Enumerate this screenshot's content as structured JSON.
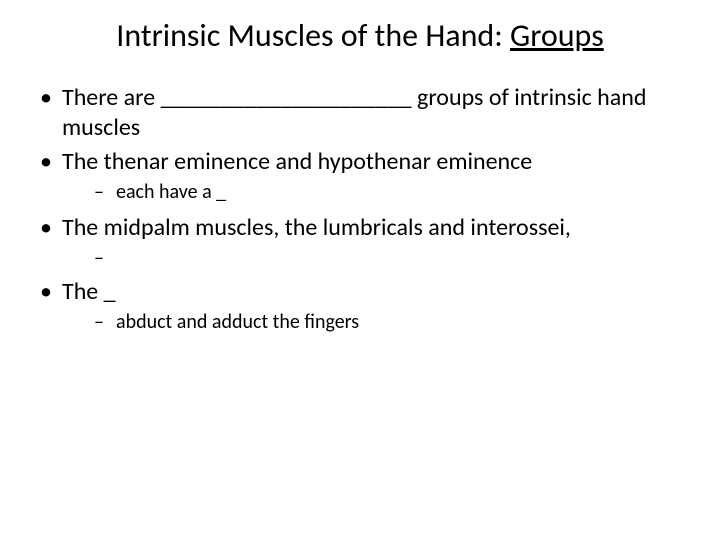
{
  "colors": {
    "background": "#ffffff",
    "text": "#000000"
  },
  "typography": {
    "title_fontsize": 32,
    "body_fontsize": 24,
    "sub_fontsize": 20,
    "font_family": "Calibri"
  },
  "title": {
    "prefix": "Intrinsic Muscles of the Hand: ",
    "underlined": "Groups"
  },
  "bullets": [
    {
      "text": "There are _____________________ groups of intrinsic hand muscles"
    },
    {
      "text": "The thenar eminence and hypothenar eminence",
      "sub": [
        {
          "text": "each have a _"
        }
      ]
    },
    {
      "text": "The midpalm muscles, the lumbricals and interossei,",
      "sub": [
        {
          "text": ""
        }
      ]
    },
    {
      "text": "The _",
      "sub": [
        {
          "text": "abduct and adduct the fingers"
        }
      ]
    }
  ]
}
